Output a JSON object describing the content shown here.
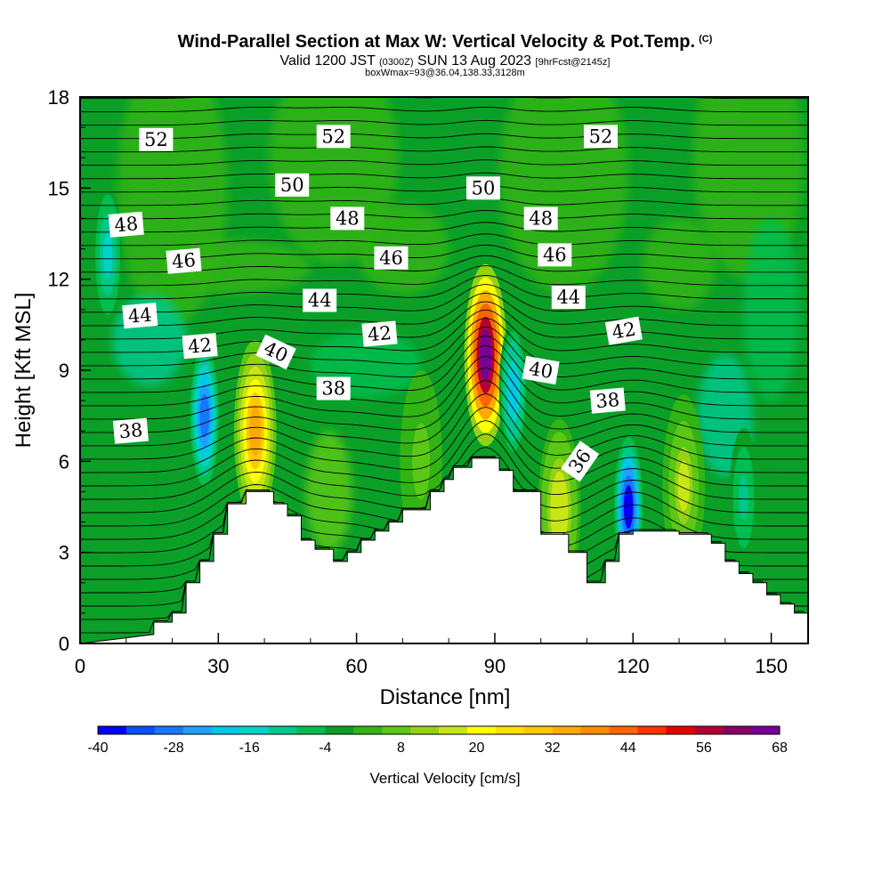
{
  "header": {
    "title": "Wind-Parallel Section at Max W: Vertical Velocity & Pot.Temp.",
    "copyright": "(C)",
    "valid_prefix": "Valid 1200 JST",
    "valid_utc": "(0300Z)",
    "valid_date": "SUN 13 Aug 2023",
    "forecast": "[9hrFcst@2145z]",
    "boxwmax": "boxWmax=93@36.04,138.33,3128m"
  },
  "colors": {
    "scale": [
      "#0000ff",
      "#0a50ff",
      "#1478ff",
      "#1ea0ff",
      "#00c8e6",
      "#00d2c8",
      "#00c88c",
      "#00be50",
      "#0aa028",
      "#32b414",
      "#5ac814",
      "#96d214",
      "#c8e614",
      "#ffff00",
      "#ffe100",
      "#ffc800",
      "#ffaa00",
      "#ff8c00",
      "#ff6400",
      "#ff3200",
      "#e60000",
      "#b40032",
      "#8c0064",
      "#780096"
    ]
  },
  "chart_data": {
    "type": "heatmap",
    "xlabel": "Distance [nm]",
    "ylabel": "Height [Kft MSL]",
    "xlim": [
      0,
      158
    ],
    "ylim": [
      0,
      18
    ],
    "xticks": [
      0,
      30,
      60,
      90,
      120,
      150
    ],
    "yticks": [
      0,
      3,
      6,
      9,
      12,
      15,
      18
    ],
    "colorbar": {
      "label": "Vertical Velocity [cm/s]",
      "min": -40,
      "max": 68,
      "step": 4.5,
      "ticks": [
        -40,
        -28,
        -16,
        -4,
        8,
        20,
        32,
        44,
        56,
        68
      ]
    },
    "terrain": [
      [
        0,
        0
      ],
      [
        16,
        0.3
      ],
      [
        16,
        0.7
      ],
      [
        20,
        0.7
      ],
      [
        20,
        1
      ],
      [
        23,
        1
      ],
      [
        23,
        2
      ],
      [
        26,
        2
      ],
      [
        26,
        2.7
      ],
      [
        29,
        2.7
      ],
      [
        29,
        3.6
      ],
      [
        32,
        3.6
      ],
      [
        32,
        4.6
      ],
      [
        36,
        4.6
      ],
      [
        36,
        5
      ],
      [
        42,
        5
      ],
      [
        42,
        4.6
      ],
      [
        45,
        4.6
      ],
      [
        45,
        4.2
      ],
      [
        48,
        4.2
      ],
      [
        48,
        3.4
      ],
      [
        51,
        3.4
      ],
      [
        51,
        3.1
      ],
      [
        55,
        3.1
      ],
      [
        55,
        2.7
      ],
      [
        58,
        2.7
      ],
      [
        58,
        3
      ],
      [
        61,
        3
      ],
      [
        61,
        3.4
      ],
      [
        64,
        3.4
      ],
      [
        64,
        3.7
      ],
      [
        67,
        3.7
      ],
      [
        67,
        4
      ],
      [
        70,
        4
      ],
      [
        70,
        4.4
      ],
      [
        76,
        4.4
      ],
      [
        76,
        5
      ],
      [
        79,
        5
      ],
      [
        79,
        5.4
      ],
      [
        81,
        5.4
      ],
      [
        81,
        5.8
      ],
      [
        85,
        5.8
      ],
      [
        85,
        6.1
      ],
      [
        91,
        6.1
      ],
      [
        91,
        5.7
      ],
      [
        94,
        5.7
      ],
      [
        94,
        5
      ],
      [
        100,
        5
      ],
      [
        100,
        3.6
      ],
      [
        106,
        3.6
      ],
      [
        106,
        3
      ],
      [
        110,
        3
      ],
      [
        110,
        2
      ],
      [
        114,
        2
      ],
      [
        114,
        2.7
      ],
      [
        117,
        2.7
      ],
      [
        117,
        3.6
      ],
      [
        120,
        3.6
      ],
      [
        120,
        3.7
      ],
      [
        130,
        3.7
      ],
      [
        130,
        3.6
      ],
      [
        137,
        3.6
      ],
      [
        137,
        3.3
      ],
      [
        140,
        3.3
      ],
      [
        140,
        2.7
      ],
      [
        143,
        2.7
      ],
      [
        143,
        2.3
      ],
      [
        146,
        2.3
      ],
      [
        146,
        2
      ],
      [
        149,
        2
      ],
      [
        149,
        1.6
      ],
      [
        152,
        1.6
      ],
      [
        152,
        1.3
      ],
      [
        155,
        1.3
      ],
      [
        155,
        1
      ],
      [
        158,
        1
      ],
      [
        158,
        0
      ]
    ],
    "updrafts": [
      {
        "x": 38,
        "y": 7.0,
        "peak": 33
      },
      {
        "x": 88,
        "y": 9.5,
        "peak": 68
      },
      {
        "x": 104,
        "y": 4.4,
        "peak": 18
      },
      {
        "x": 131,
        "y": 5.2,
        "peak": 14
      },
      {
        "x": 74,
        "y": 6.0,
        "peak": 6
      }
    ],
    "downdrafts": [
      {
        "x": 27,
        "y": 7.5,
        "peak": -28
      },
      {
        "x": 119,
        "y": 4.5,
        "peak": -36
      },
      {
        "x": 94,
        "y": 8.3,
        "peak": -18
      },
      {
        "x": 6,
        "y": 12.8,
        "peak": -14
      },
      {
        "x": 144,
        "y": 4.8,
        "peak": -10
      }
    ],
    "isentrope_labels": [
      {
        "text": "52",
        "x": 16.5,
        "y": 16.6,
        "angle": 0
      },
      {
        "text": "52",
        "x": 55,
        "y": 16.7,
        "angle": 0
      },
      {
        "text": "52",
        "x": 113,
        "y": 16.7,
        "angle": 0
      },
      {
        "text": "50",
        "x": 46,
        "y": 15.1,
        "angle": 0
      },
      {
        "text": "50",
        "x": 87.5,
        "y": 15.0,
        "angle": 0
      },
      {
        "text": "48",
        "x": 10,
        "y": 13.8,
        "angle": -5
      },
      {
        "text": "48",
        "x": 58,
        "y": 14.0,
        "angle": 0
      },
      {
        "text": "48",
        "x": 100,
        "y": 14.0,
        "angle": 0
      },
      {
        "text": "46",
        "x": 22.5,
        "y": 12.6,
        "angle": -5
      },
      {
        "text": "46",
        "x": 67.5,
        "y": 12.7,
        "angle": 0
      },
      {
        "text": "46",
        "x": 103,
        "y": 12.8,
        "angle": 0
      },
      {
        "text": "44",
        "x": 13,
        "y": 10.8,
        "angle": -5
      },
      {
        "text": "44",
        "x": 52,
        "y": 11.3,
        "angle": 0
      },
      {
        "text": "44",
        "x": 106,
        "y": 11.4,
        "angle": 0
      },
      {
        "text": "42",
        "x": 26,
        "y": 9.8,
        "angle": -5
      },
      {
        "text": "42",
        "x": 65,
        "y": 10.2,
        "angle": -5
      },
      {
        "text": "42",
        "x": 118,
        "y": 10.3,
        "angle": -10
      },
      {
        "text": "40",
        "x": 42.5,
        "y": 9.6,
        "angle": 25
      },
      {
        "text": "40",
        "x": 100,
        "y": 9.0,
        "angle": 10
      },
      {
        "text": "38",
        "x": 11,
        "y": 7.0,
        "angle": -5
      },
      {
        "text": "38",
        "x": 55,
        "y": 8.4,
        "angle": 0
      },
      {
        "text": "38",
        "x": 114.5,
        "y": 8.0,
        "angle": -5
      },
      {
        "text": "36",
        "x": 108.5,
        "y": 6.0,
        "angle": -55
      }
    ]
  }
}
